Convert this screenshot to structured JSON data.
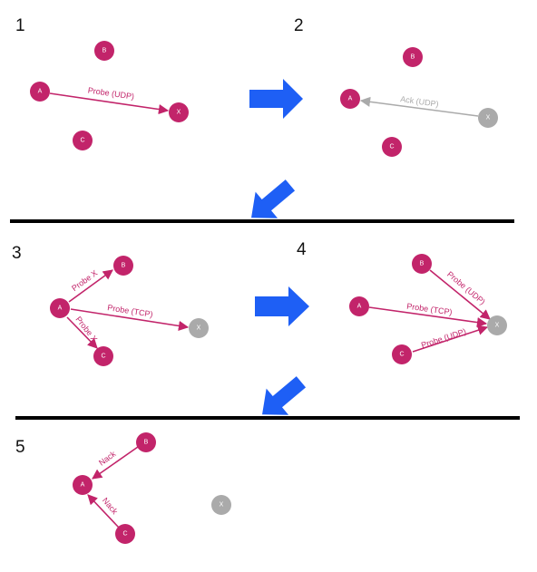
{
  "colors": {
    "active": "#c2246a",
    "inactive": "#aaaaaa",
    "arrow": "#1e5ff5",
    "divider": "#000000"
  },
  "steps": [
    {
      "number": "1",
      "nodes": {
        "A": "A",
        "B": "B",
        "C": "C",
        "X": "X"
      },
      "edges": [
        {
          "label": "Probe (UDP)"
        }
      ]
    },
    {
      "number": "2",
      "nodes": {
        "A": "A",
        "B": "B",
        "C": "C",
        "X": "X"
      },
      "edges": [
        {
          "label": "Ack (UDP)"
        }
      ]
    },
    {
      "number": "3",
      "nodes": {
        "A": "A",
        "B": "B",
        "C": "C",
        "X": "X"
      },
      "edges": [
        {
          "label": "Probe X"
        },
        {
          "label": "Probe (TCP)"
        },
        {
          "label": "Probe X"
        }
      ]
    },
    {
      "number": "4",
      "nodes": {
        "A": "A",
        "B": "B",
        "C": "C",
        "X": "X"
      },
      "edges": [
        {
          "label": "Probe (UDP)"
        },
        {
          "label": "Probe (TCP)"
        },
        {
          "label": "Probe (UDP)"
        }
      ]
    },
    {
      "number": "5",
      "nodes": {
        "A": "A",
        "B": "B",
        "C": "C",
        "X": "X"
      },
      "edges": [
        {
          "label": "Nack"
        },
        {
          "label": "Nack"
        }
      ]
    }
  ]
}
